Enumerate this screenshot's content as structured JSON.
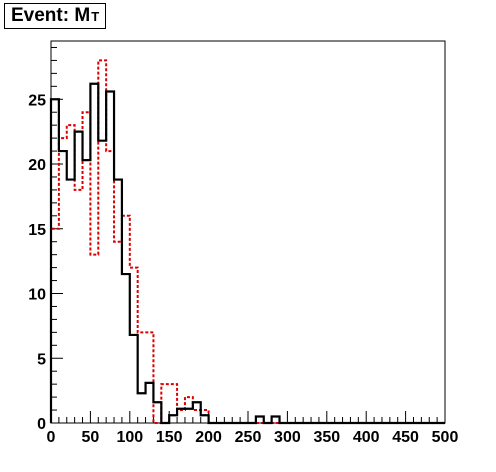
{
  "title": {
    "text": "Event: M",
    "subscript": "T"
  },
  "chart_data": {
    "type": "histogram",
    "title": "Event: M_T",
    "xlabel": "",
    "ylabel": "",
    "xlim": [
      0,
      500
    ],
    "ylim": [
      0,
      29.5
    ],
    "bin_width": 10,
    "x_ticks": [
      0,
      50,
      100,
      150,
      200,
      250,
      300,
      350,
      400,
      450,
      500
    ],
    "y_ticks": [
      0,
      5,
      10,
      15,
      20,
      25
    ],
    "grid": false,
    "legend": "none",
    "series": [
      {
        "style": "solid",
        "color": "#000000",
        "bin_edges_start": 0,
        "values": [
          25,
          21,
          18.8,
          22.5,
          20.3,
          26.2,
          21.8,
          25.6,
          18.8,
          11.5,
          6.8,
          2.3,
          3.1,
          1.6,
          0,
          0.6,
          1.1,
          1.1,
          1.6,
          0.6,
          0,
          0,
          0,
          0,
          0,
          0,
          0.5,
          0,
          0.5,
          0,
          0,
          0,
          0,
          0,
          0,
          0,
          0,
          0,
          0,
          0,
          0,
          0,
          0,
          0,
          0,
          0,
          0,
          0,
          0,
          0
        ]
      },
      {
        "style": "dashed",
        "color": "#dd0000",
        "bin_edges_start": 0,
        "values": [
          15,
          22,
          23,
          18,
          24,
          13,
          28,
          21,
          14,
          16,
          12,
          7,
          7,
          0,
          3,
          3,
          1,
          2,
          1,
          1,
          0,
          0,
          0,
          0,
          0,
          0,
          0,
          0,
          0,
          0,
          0,
          0,
          0,
          0,
          0,
          0,
          0,
          0,
          0,
          0,
          0,
          0,
          0,
          0,
          0,
          0,
          0,
          0,
          0,
          0
        ]
      }
    ]
  }
}
